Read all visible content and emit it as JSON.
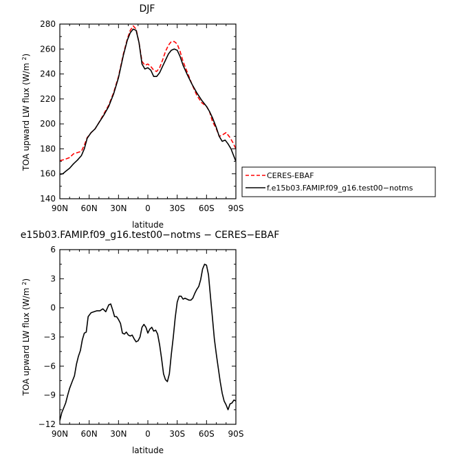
{
  "chart_data": [
    {
      "type": "line",
      "title": "DJF",
      "xlabel": "latitude",
      "ylabel": "TOA upward LW flux (W/m²)",
      "xlim": [
        90,
        -90
      ],
      "ylim": [
        140,
        280
      ],
      "xticks": [
        90,
        60,
        30,
        0,
        -30,
        -60,
        -90
      ],
      "xtick_labels": [
        "90N",
        "60N",
        "30N",
        "0",
        "30S",
        "60S",
        "90S"
      ],
      "yticks": [
        140,
        160,
        180,
        200,
        220,
        240,
        260,
        280
      ],
      "ytick_labels": [
        "140",
        "160",
        "180",
        "200",
        "220",
        "240",
        "260",
        "280"
      ],
      "legend": "outside-right",
      "series": [
        {
          "name": "CERES-EBAF",
          "color": "#ff0000",
          "dashed": true,
          "x": [
            90,
            85,
            80,
            76,
            72,
            68,
            65,
            62,
            58,
            54,
            50,
            45,
            40,
            35,
            30,
            25,
            21,
            18,
            15,
            12,
            9,
            6,
            3,
            0,
            -3,
            -6,
            -9,
            -12,
            -15,
            -18,
            -21,
            -24,
            -27,
            -30,
            -33,
            -36,
            -40,
            -45,
            -50,
            -55,
            -60,
            -63,
            -66,
            -70,
            -73,
            -76,
            -80,
            -84,
            -87,
            -90
          ],
          "values": [
            170.5,
            171.5,
            173,
            176,
            177,
            178,
            183,
            189,
            193,
            196,
            201,
            208,
            215,
            225,
            238,
            256,
            268,
            275,
            278.5,
            276,
            265,
            250,
            247,
            248,
            246,
            243,
            242,
            245,
            251,
            258,
            263,
            266,
            266,
            264,
            258,
            250,
            242,
            232,
            223,
            217,
            214,
            210,
            202,
            196,
            190,
            191,
            193,
            189,
            185,
            180
          ]
        },
        {
          "name": "f.e15b03.FAMIP.f09_g16.test00−notms",
          "color": "#000000",
          "dashed": false,
          "x": [
            90,
            87,
            84,
            80,
            76,
            72,
            68,
            65,
            62,
            58,
            54,
            50,
            45,
            40,
            35,
            30,
            25,
            21,
            18,
            15,
            12,
            9,
            6,
            3,
            0,
            -3,
            -6,
            -9,
            -12,
            -15,
            -18,
            -21,
            -24,
            -27,
            -30,
            -33,
            -36,
            -40,
            -45,
            -50,
            -55,
            -60,
            -63,
            -66,
            -70,
            -73,
            -76,
            -79,
            -82,
            -85,
            -87,
            -90
          ],
          "values": [
            159.5,
            160,
            162,
            164.5,
            168,
            171,
            174.5,
            180,
            188.5,
            193,
            196,
            201,
            207,
            214,
            224,
            237,
            255,
            267,
            273,
            276,
            275,
            265,
            248,
            244,
            245,
            243,
            238,
            238,
            241,
            246,
            251,
            256,
            259,
            260,
            259,
            254,
            247,
            240,
            232,
            225,
            219,
            214,
            210,
            205,
            197,
            190,
            186,
            187,
            184,
            180,
            176,
            170
          ]
        }
      ]
    },
    {
      "type": "line",
      "title": "e15b03.FAMIP.f09_g16.test00−notms − CERES−EBAF",
      "xlabel": "latitude",
      "ylabel": "TOA upward LW flux (W/m²)",
      "xlim": [
        90,
        -90
      ],
      "ylim": [
        -12,
        6
      ],
      "xticks": [
        90,
        60,
        30,
        0,
        -30,
        -60,
        -90
      ],
      "xtick_labels": [
        "90N",
        "60N",
        "30N",
        "0",
        "30S",
        "60S",
        "90S"
      ],
      "yticks": [
        -12,
        -9,
        -6,
        -3,
        0,
        3,
        6
      ],
      "ytick_labels": [
        "−12",
        "−9",
        "−6",
        "−3",
        "0",
        "3",
        "6"
      ],
      "series": [
        {
          "color": "#000000",
          "dashed": false,
          "x": [
            90,
            88,
            86,
            84,
            82,
            80,
            77,
            75,
            73,
            71,
            69,
            67,
            65,
            63,
            61,
            58,
            55,
            52,
            49,
            46,
            43,
            40,
            38,
            36,
            34,
            32,
            30,
            28,
            26,
            24,
            22,
            20,
            18,
            16,
            14,
            12,
            10,
            8,
            6,
            4,
            2,
            0,
            -2,
            -4,
            -6,
            -8,
            -10,
            -12,
            -14,
            -16,
            -18,
            -20,
            -22,
            -24,
            -26,
            -28,
            -30,
            -32,
            -34,
            -36,
            -38,
            -40,
            -42,
            -44,
            -46,
            -48,
            -50,
            -52,
            -54,
            -56,
            -58,
            -60,
            -62,
            -64,
            -66,
            -68,
            -70,
            -72,
            -74,
            -76,
            -78,
            -80,
            -82,
            -84,
            -86,
            -88,
            -90
          ],
          "values": [
            -11.6,
            -10.8,
            -10.3,
            -9.8,
            -9.0,
            -8.3,
            -7.5,
            -7.0,
            -5.8,
            -5.0,
            -4.4,
            -3.3,
            -2.6,
            -2.5,
            -0.9,
            -0.5,
            -0.4,
            -0.3,
            -0.3,
            -0.1,
            -0.4,
            0.3,
            0.4,
            -0.2,
            -0.9,
            -0.9,
            -1.2,
            -1.6,
            -2.6,
            -2.7,
            -2.5,
            -2.8,
            -2.9,
            -2.8,
            -3.2,
            -3.5,
            -3.4,
            -3.0,
            -2.0,
            -1.7,
            -2.0,
            -2.6,
            -2.2,
            -2.0,
            -2.4,
            -2.3,
            -2.7,
            -3.8,
            -5.2,
            -6.8,
            -7.4,
            -7.6,
            -6.8,
            -4.8,
            -3.0,
            -1.0,
            0.6,
            1.2,
            1.2,
            0.9,
            1.0,
            0.9,
            0.8,
            0.8,
            1.0,
            1.5,
            1.9,
            2.2,
            2.9,
            4.0,
            4.5,
            4.4,
            3.4,
            1.2,
            -1.0,
            -3.2,
            -4.8,
            -6.2,
            -7.6,
            -8.8,
            -9.6,
            -10.0,
            -10.5,
            -9.9,
            -9.8,
            -9.5,
            -9.6
          ]
        }
      ]
    }
  ]
}
